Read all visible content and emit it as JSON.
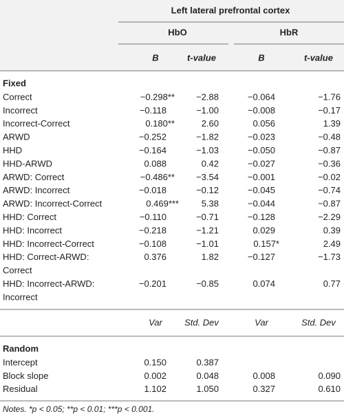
{
  "title": "Left lateral prefrontal cortex",
  "groups": [
    "HbO",
    "HbR"
  ],
  "columns": [
    "B",
    "t-value",
    "B",
    "t-value"
  ],
  "fixed": {
    "label": "Fixed",
    "rows": [
      {
        "label": [
          "Correct"
        ],
        "cells": [
          "−0.298**",
          "−2.88",
          "−0.064",
          "−1.76"
        ]
      },
      {
        "label": [
          "Incorrect"
        ],
        "cells": [
          "−0.118",
          "−1.00",
          "−0.008",
          "−0.17"
        ]
      },
      {
        "label": [
          "Incorrect-Correct"
        ],
        "cells": [
          "0.180**",
          "2.60",
          "0.056",
          "1.39"
        ]
      },
      {
        "label": [
          "ARWD"
        ],
        "cells": [
          "−0.252",
          "−1.82",
          "−0.023",
          "−0.48"
        ]
      },
      {
        "label": [
          "HHD"
        ],
        "cells": [
          "−0.164",
          "−1.03",
          "−0.050",
          "−0.87"
        ]
      },
      {
        "label": [
          "HHD-ARWD"
        ],
        "cells": [
          "0.088",
          "0.42",
          "−0.027",
          "−0.36"
        ]
      },
      {
        "label": [
          "ARWD: Correct"
        ],
        "cells": [
          "−0.486**",
          "−3.54",
          "−0.001",
          "−0.02"
        ]
      },
      {
        "label": [
          "ARWD: Incorrect"
        ],
        "cells": [
          "−0.018",
          "−0.12",
          "−0.045",
          "−0.74"
        ]
      },
      {
        "label": [
          "ARWD: Incorrect-Correct"
        ],
        "cells": [
          "0.469***",
          "5.38",
          "−0.044",
          "−0.87"
        ]
      },
      {
        "label": [
          "HHD: Correct"
        ],
        "cells": [
          "−0.110",
          "−0.71",
          "−0.128",
          "−2.29"
        ]
      },
      {
        "label": [
          "HHD: Incorrect"
        ],
        "cells": [
          "−0.218",
          "−1.21",
          "0.029",
          "0.39"
        ]
      },
      {
        "label": [
          "HHD: Incorrect-Correct"
        ],
        "cells": [
          "−0.108",
          "−1.01",
          "0.157*",
          "2.49"
        ]
      },
      {
        "label": [
          "HHD: Correct-ARWD:",
          "Correct"
        ],
        "cells": [
          "0.376",
          "1.82",
          "−0.127",
          "−1.73"
        ]
      },
      {
        "label": [
          "HHD: Incorrect-ARWD:",
          "Incorrect"
        ],
        "cells": [
          "−0.201",
          "−0.85",
          "0.074",
          "0.77"
        ]
      }
    ]
  },
  "random_columns": [
    "Var",
    "Std. Dev",
    "Var",
    "Std. Dev"
  ],
  "random": {
    "label": "Random",
    "rows": [
      {
        "label": [
          "Intercept"
        ],
        "cells": [
          "0.150",
          "0.387",
          null,
          null
        ]
      },
      {
        "label": [
          "Block slope"
        ],
        "cells": [
          "0.002",
          "0.048",
          "0.008",
          "0.090"
        ]
      },
      {
        "label": [
          "Residual"
        ],
        "cells": [
          "1.102",
          "1.050",
          "0.327",
          "0.610"
        ]
      }
    ]
  },
  "notes": "Notes. *p < 0.05; **p < 0.01; ***p < 0.001."
}
